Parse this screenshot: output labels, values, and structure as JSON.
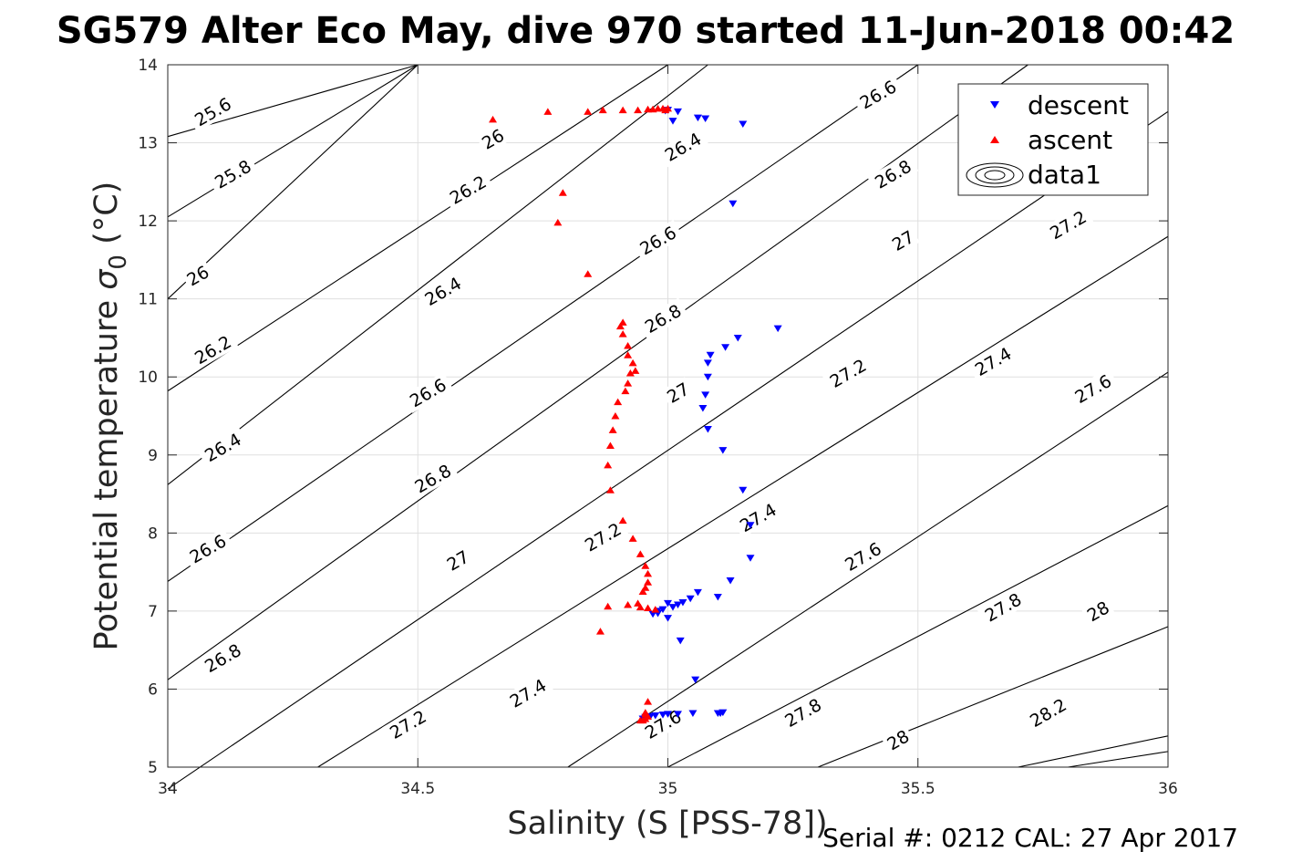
{
  "chart_data": {
    "type": "scatter",
    "title": "SG579 Alter Eco May, dive 970 started 11-Jun-2018 00:42",
    "xlabel": "Salinity (S [PSS-78])",
    "ylabel_main": "Potential temperature ",
    "ylabel_sigma": "σ",
    "ylabel_sub": "0",
    "ylabel_unit": " (°C)",
    "xlim": [
      34,
      36
    ],
    "ylim": [
      5,
      14
    ],
    "xticks": [
      34,
      34.5,
      35,
      35.5,
      36
    ],
    "yticks": [
      5,
      6,
      7,
      8,
      9,
      10,
      11,
      12,
      13,
      14
    ],
    "xtick_labels": [
      "34",
      "34.5",
      "35",
      "35.5",
      "36"
    ],
    "ytick_labels": [
      "5",
      "6",
      "7",
      "8",
      "9",
      "10",
      "11",
      "12",
      "13",
      "14"
    ],
    "grid": true,
    "legend_position": "top-right",
    "footer": "Serial #: 0212  CAL: 27 Apr 2017",
    "series": [
      {
        "name": "descent",
        "marker": "triangle-down",
        "color": "#0000ff",
        "x": [
          35.0,
          34.995,
          35.01,
          35.02,
          35.06,
          35.075,
          35.15,
          35.13,
          35.22,
          35.14,
          35.115,
          35.085,
          35.08,
          35.08,
          35.075,
          35.07,
          35.08,
          35.11,
          35.15,
          35.165,
          35.165,
          35.125,
          35.1,
          35.06,
          35.045,
          35.03,
          35.02,
          35.01,
          35.0,
          34.99,
          34.98,
          34.97,
          34.98,
          35.0,
          35.025,
          35.055,
          35.11,
          35.105,
          35.1,
          35.05,
          35.02,
          35.0,
          34.99,
          34.975,
          34.965,
          34.955,
          34.95
        ],
        "y": [
          13.42,
          13.41,
          13.28,
          13.4,
          13.32,
          13.31,
          13.24,
          12.22,
          10.62,
          10.5,
          10.38,
          10.28,
          10.18,
          10.0,
          9.77,
          9.6,
          9.33,
          9.06,
          8.55,
          8.1,
          7.68,
          7.39,
          7.18,
          7.24,
          7.16,
          7.11,
          7.08,
          7.05,
          7.1,
          7.02,
          6.97,
          6.96,
          7.0,
          6.91,
          6.62,
          6.12,
          5.7,
          5.69,
          5.69,
          5.69,
          5.68,
          5.68,
          5.67,
          5.66,
          5.65,
          5.64,
          5.62
        ]
      },
      {
        "name": "ascent",
        "marker": "triangle-up",
        "color": "#ff0000",
        "x": [
          34.95,
          34.955,
          34.96,
          34.955,
          34.945,
          34.955,
          34.96,
          34.65,
          34.76,
          34.84,
          34.87,
          34.91,
          34.94,
          34.96,
          34.97,
          34.98,
          34.99,
          35.0,
          34.995,
          34.79,
          34.78,
          34.84,
          34.91,
          34.905,
          34.91,
          34.92,
          34.92,
          34.93,
          34.935,
          34.925,
          34.92,
          34.915,
          34.9,
          34.895,
          34.89,
          34.885,
          34.88,
          34.885,
          34.91,
          34.93,
          34.945,
          34.955,
          34.96,
          34.96,
          34.955,
          34.95,
          34.94,
          34.92,
          34.88,
          34.865,
          34.945,
          34.96,
          34.975
        ],
        "y": [
          5.6,
          5.62,
          5.65,
          5.68,
          5.6,
          5.7,
          5.84,
          13.3,
          13.4,
          13.4,
          13.42,
          13.42,
          13.42,
          13.43,
          13.43,
          13.44,
          13.44,
          13.44,
          13.42,
          12.36,
          11.98,
          11.32,
          10.7,
          10.65,
          10.55,
          10.4,
          10.28,
          10.18,
          10.08,
          10.05,
          9.92,
          9.82,
          9.68,
          9.5,
          9.32,
          9.12,
          8.87,
          8.55,
          8.16,
          7.93,
          7.73,
          7.58,
          7.48,
          7.37,
          7.3,
          7.25,
          7.1,
          7.08,
          7.06,
          6.74,
          7.05,
          7.04,
          7.02
        ]
      },
      {
        "name": "data1",
        "marker": "contour",
        "color": "#000000",
        "contour_levels": [
          25.6,
          25.8,
          26,
          26.2,
          26.4,
          26.6,
          26.8,
          27,
          27.2,
          27.4,
          27.6,
          27.8,
          28,
          28.2
        ],
        "contour_lines": [
          {
            "x": [
              34.0,
              34.5
            ],
            "y": [
              13.08,
              14.0
            ]
          },
          {
            "x": [
              34.0,
              34.5
            ],
            "y": [
              12.05,
              14.0
            ]
          },
          {
            "x": [
              34.0,
              34.5
            ],
            "y": [
              11.0,
              14.0
            ]
          },
          {
            "x": [
              34.0,
              35.0
            ],
            "y": [
              9.82,
              14.0
            ]
          },
          {
            "x": [
              34.0,
              35.08
            ],
            "y": [
              8.62,
              14.0
            ]
          },
          {
            "x": [
              34.0,
              35.5
            ],
            "y": [
              7.38,
              14.0
            ]
          },
          {
            "x": [
              34.0,
              35.72
            ],
            "y": [
              6.12,
              14.0
            ]
          },
          {
            "x": [
              34.0,
              36.0
            ],
            "y": [
              4.72,
              13.4
            ]
          },
          {
            "x": [
              34.3,
              36.0
            ],
            "y": [
              5.0,
              11.8
            ]
          },
          {
            "x": [
              34.8,
              36.0
            ],
            "y": [
              5.0,
              10.06
            ]
          },
          {
            "x": [
              35.0,
              36.0
            ],
            "y": [
              5.0,
              8.35
            ]
          },
          {
            "x": [
              35.3,
              36.0
            ],
            "y": [
              5.0,
              6.8
            ]
          },
          {
            "x": [
              35.7,
              36.0
            ],
            "y": [
              5.0,
              5.4
            ]
          },
          {
            "x": [
              35.8,
              36.0
            ],
            "y": [
              5.0,
              5.2
            ]
          }
        ],
        "contour_labels": [
          {
            "text": "25.6",
            "x": 34.09,
            "y": 13.4
          },
          {
            "text": "25.8",
            "x": 34.13,
            "y": 12.6
          },
          {
            "text": "26",
            "x": 34.65,
            "y": 13.05
          },
          {
            "text": "26",
            "x": 34.06,
            "y": 11.3
          },
          {
            "text": "26.2",
            "x": 34.6,
            "y": 12.4
          },
          {
            "text": "26.2",
            "x": 34.09,
            "y": 10.35
          },
          {
            "text": "26.4",
            "x": 35.03,
            "y": 12.95
          },
          {
            "text": "26.4",
            "x": 34.55,
            "y": 11.1
          },
          {
            "text": "26.4",
            "x": 34.11,
            "y": 9.1
          },
          {
            "text": "26.6",
            "x": 35.42,
            "y": 13.62
          },
          {
            "text": "26.6",
            "x": 34.98,
            "y": 11.75
          },
          {
            "text": "26.6",
            "x": 34.52,
            "y": 9.8
          },
          {
            "text": "26.6",
            "x": 34.08,
            "y": 7.8
          },
          {
            "text": "26.8",
            "x": 35.45,
            "y": 12.6
          },
          {
            "text": "26.8",
            "x": 34.99,
            "y": 10.75
          },
          {
            "text": "26.8",
            "x": 34.53,
            "y": 8.7
          },
          {
            "text": "26.8",
            "x": 34.11,
            "y": 6.4
          },
          {
            "text": "27",
            "x": 35.47,
            "y": 11.75
          },
          {
            "text": "27",
            "x": 35.02,
            "y": 9.8
          },
          {
            "text": "27",
            "x": 34.58,
            "y": 7.65
          },
          {
            "text": "27.2",
            "x": 35.8,
            "y": 11.95
          },
          {
            "text": "27.2",
            "x": 35.36,
            "y": 10.05
          },
          {
            "text": "27.2",
            "x": 34.87,
            "y": 7.95
          },
          {
            "text": "27.2",
            "x": 34.48,
            "y": 5.55
          },
          {
            "text": "27.4",
            "x": 35.65,
            "y": 10.2
          },
          {
            "text": "27.4",
            "x": 35.18,
            "y": 8.2
          },
          {
            "text": "27.4",
            "x": 34.72,
            "y": 5.95
          },
          {
            "text": "27.6",
            "x": 35.85,
            "y": 9.85
          },
          {
            "text": "27.6",
            "x": 35.39,
            "y": 7.7
          },
          {
            "text": "27.6",
            "x": 34.99,
            "y": 5.55
          },
          {
            "text": "27.8",
            "x": 35.67,
            "y": 7.05
          },
          {
            "text": "27.8",
            "x": 35.27,
            "y": 5.7
          },
          {
            "text": "28",
            "x": 35.86,
            "y": 7.0
          },
          {
            "text": "28",
            "x": 35.46,
            "y": 5.35
          },
          {
            "text": "28.2",
            "x": 35.76,
            "y": 5.7
          }
        ]
      }
    ]
  }
}
